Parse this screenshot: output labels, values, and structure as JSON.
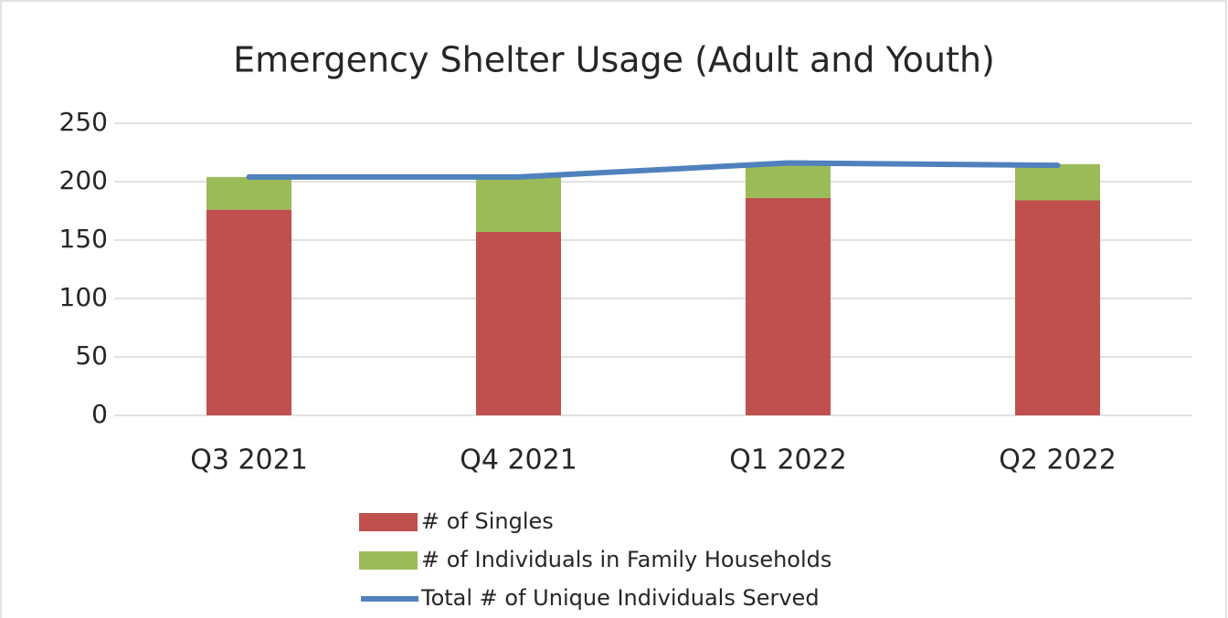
{
  "chart_data": {
    "type": "bar",
    "stacked": true,
    "title": "Emergency Shelter Usage (Adult and Youth)",
    "categories": [
      "Q3 2021",
      "Q4 2021",
      "Q1 2022",
      "Q2 2022"
    ],
    "series": [
      {
        "name": "# of Singles",
        "color": "#c0504d",
        "type": "bar",
        "values": [
          176,
          157,
          186,
          184
        ]
      },
      {
        "name": "# of Individuals in Family Households",
        "color": "#9bbb59",
        "type": "bar",
        "values": [
          28,
          47,
          29,
          31
        ]
      },
      {
        "name": "Total # of Unique Individuals Served",
        "color": "#4f81bd",
        "type": "line",
        "values": [
          204,
          204,
          216,
          214
        ]
      }
    ],
    "ylim": [
      0,
      250
    ],
    "yticks": [
      0,
      50,
      100,
      150,
      200,
      250
    ],
    "grid": true,
    "legend": "bottom"
  }
}
